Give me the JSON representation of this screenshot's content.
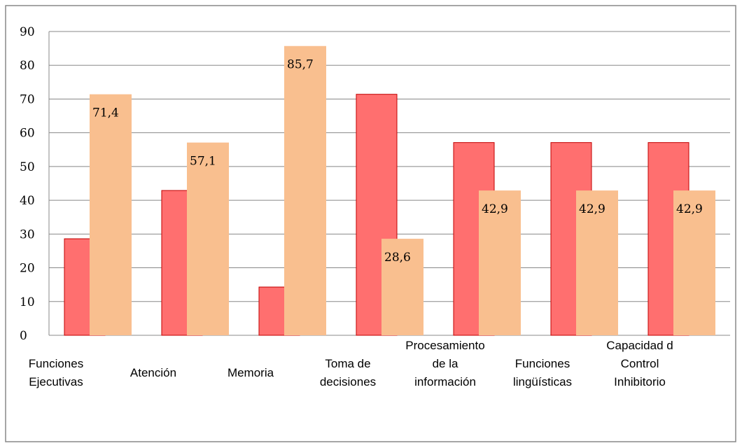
{
  "chart_data": {
    "type": "bar",
    "categories": [
      [
        "Funciones",
        "Ejecutivas"
      ],
      [
        "Atención"
      ],
      [
        "Memoria"
      ],
      [
        "Toma de",
        "decisiones"
      ],
      [
        "Procesamiento",
        "de la",
        "información"
      ],
      [
        "Funciones",
        "lingüísticas"
      ],
      [
        "Capacidad d",
        "Control",
        "Inhibitorio"
      ]
    ],
    "series": [
      {
        "color": "#ff6f6f",
        "values": [
          28.6,
          42.9,
          14.3,
          71.4,
          57.1,
          57.1,
          57.1
        ]
      },
      {
        "color": "#f9bf8f",
        "values": [
          71.4,
          57.1,
          85.7,
          28.6,
          42.9,
          42.9,
          42.9
        ],
        "value_labels": [
          "71,4",
          "57,1",
          "85,7",
          "28,6",
          "42,9",
          "42,9",
          "42,9"
        ]
      }
    ],
    "ylim": [
      0,
      90
    ],
    "yticks": [
      0,
      10,
      20,
      30,
      40,
      50,
      60,
      70,
      80,
      90
    ],
    "grid": true
  }
}
